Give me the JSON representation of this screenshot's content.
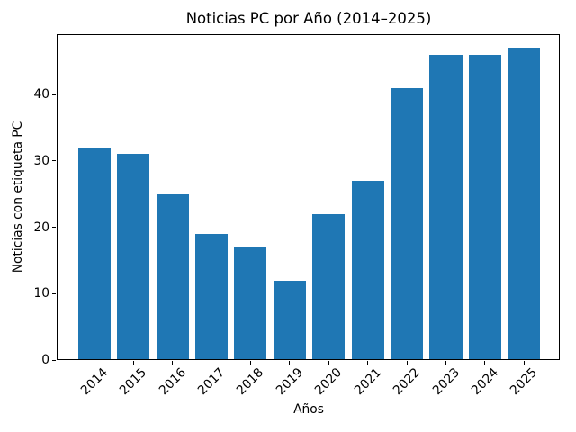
{
  "chart_data": {
    "type": "bar",
    "title": "Noticias PC por Año (2014–2025)",
    "xlabel": "Años",
    "ylabel": "Noticias con etiqueta PC",
    "categories": [
      "2014",
      "2015",
      "2016",
      "2017",
      "2018",
      "2019",
      "2020",
      "2021",
      "2022",
      "2023",
      "2024",
      "2025"
    ],
    "values": [
      32,
      31,
      25,
      19,
      17,
      12,
      22,
      27,
      41,
      46,
      46,
      47
    ],
    "yticks": [
      0,
      10,
      20,
      30,
      40
    ],
    "ylim": [
      0,
      49.1
    ],
    "xtick_rotation_deg": 45,
    "grid": false,
    "legend": null,
    "colors": {
      "bar": "#1f77b4",
      "background": "#ffffff",
      "axis": "#000000",
      "text": "#000000"
    }
  }
}
